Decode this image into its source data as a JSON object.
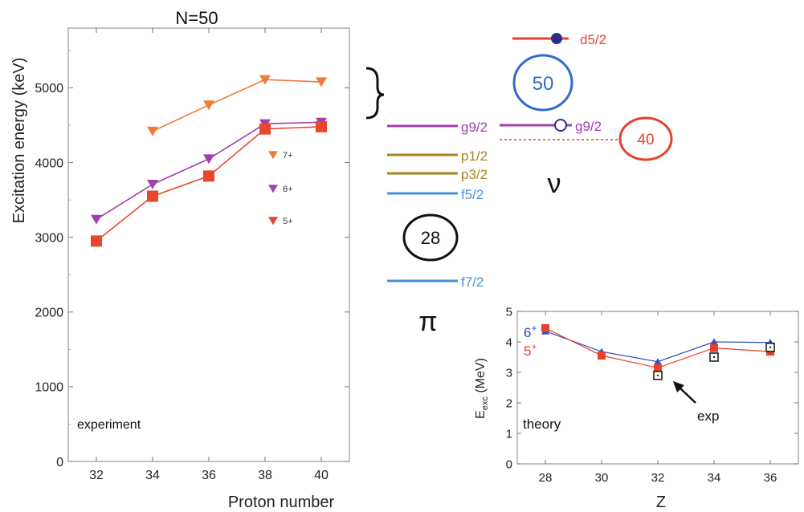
{
  "chart_data": [
    {
      "type": "line",
      "title": "N=50",
      "xlabel": "Proton number",
      "ylabel": "Excitation energy (keV)",
      "xlim": [
        31,
        41
      ],
      "ylim": [
        0,
        5800
      ],
      "xticks": [
        32,
        34,
        36,
        38,
        40
      ],
      "yticks": [
        0,
        1000,
        2000,
        3000,
        4000,
        5000
      ],
      "annotation": "experiment",
      "legend_position": "center-right",
      "series": [
        {
          "name": "7+",
          "color": "#f07c3a",
          "marker": "triangle-down",
          "x": [
            34,
            36,
            38,
            40
          ],
          "y": [
            4420,
            4770,
            5110,
            5080
          ]
        },
        {
          "name": "6+",
          "color": "#a040b0",
          "marker": "triangle-down",
          "x": [
            32,
            34,
            36,
            38,
            40
          ],
          "y": [
            3240,
            3710,
            4050,
            4520,
            4540
          ]
        },
        {
          "name": "5+",
          "color": "#e8472e",
          "marker": "square",
          "x": [
            32,
            34,
            36,
            38,
            40
          ],
          "y": [
            2950,
            3550,
            3820,
            4450,
            4480
          ]
        }
      ],
      "legend_markers": [
        {
          "name": "7+",
          "color": "#f07c3a"
        },
        {
          "name": "6+",
          "color": "#a040b0"
        },
        {
          "name": "5+",
          "color": "#e8472e"
        }
      ]
    },
    {
      "type": "line",
      "xlabel": "Z",
      "ylabel_main": "E",
      "ylabel_sub": "exc",
      "ylabel_unit": " (MeV)",
      "xlim": [
        27,
        37
      ],
      "ylim": [
        0,
        5
      ],
      "xticks": [
        28,
        30,
        32,
        34,
        36
      ],
      "yticks": [
        0,
        1,
        2,
        3,
        4,
        5
      ],
      "annotation": "theory",
      "exp_label": "exp",
      "series": [
        {
          "name": "6+",
          "color": "#3050c8",
          "marker": "triangle-up",
          "x": [
            28,
            30,
            32,
            34,
            36
          ],
          "y": [
            4.35,
            3.68,
            3.35,
            4.0,
            3.98
          ]
        },
        {
          "name": "5+",
          "color": "#e8402c",
          "marker": "square",
          "x": [
            28,
            30,
            32,
            34,
            36
          ],
          "y": [
            4.45,
            3.55,
            3.15,
            3.8,
            3.68
          ]
        },
        {
          "name": "exp",
          "color": "#222222",
          "marker": "open-square",
          "x": [
            32,
            34,
            36
          ],
          "y": [
            2.9,
            3.5,
            3.82
          ]
        }
      ]
    }
  ],
  "level_scheme": {
    "proton_symbol": "π",
    "neutron_symbol": "ν",
    "proton_levels": [
      {
        "label": "g9/2",
        "color": "#a040b0"
      },
      {
        "label": "p1/2",
        "color": "#a88420"
      },
      {
        "label": "p3/2",
        "color": "#a88420"
      },
      {
        "label": "f5/2",
        "color": "#4a90d9"
      },
      {
        "label": "f7/2",
        "color": "#4a90d9"
      }
    ],
    "neutron_levels": [
      {
        "label": "d5/2",
        "color": "#e8402c"
      },
      {
        "label": "g9/2",
        "color": "#a040b0"
      }
    ],
    "magic_numbers": [
      {
        "value": "28",
        "color": "#111111"
      },
      {
        "value": "50",
        "color": "#2f6ad0"
      },
      {
        "value": "40",
        "color": "#e8402c"
      }
    ]
  }
}
